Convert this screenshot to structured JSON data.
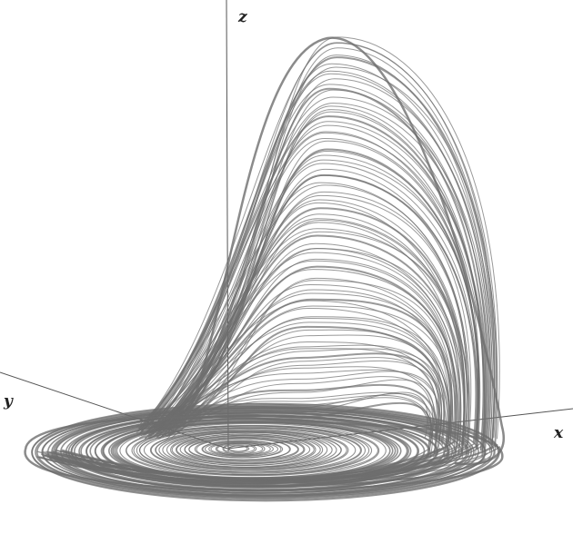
{
  "axes": {
    "x_label": "x",
    "y_label": "y",
    "z_label": "z"
  },
  "colors": {
    "background": "#ffffff",
    "axis": "#555555",
    "trajectory": "#6e6e6e",
    "label": "#222222"
  }
}
